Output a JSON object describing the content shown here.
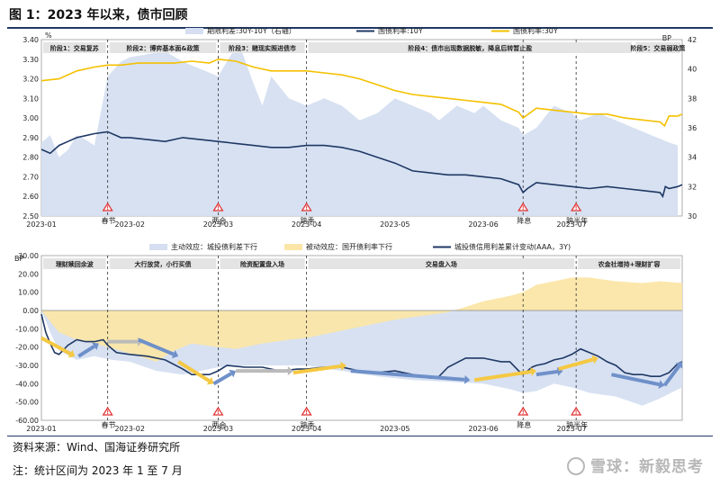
{
  "figure_title": "图 1：2023 年以来，债市回顾",
  "source": "资料来源：Wind、国海证券研究所",
  "note": "注：统计区间为 2023 年 1 至 7 月",
  "watermark": "雪球：新毅思考",
  "colors": {
    "spread_fill": "#d5dff1",
    "cgb10": "#1f3864",
    "cgb30": "#f5c000",
    "active_fill": "#d5dff1",
    "passive_fill": "#fbe6a8",
    "credit_line": "#1f3864",
    "phase_box": "#e4e4e4",
    "event_marker": "#e03030",
    "arrow_blue": "#6f90c9",
    "arrow_gold": "#f5c842",
    "arrow_gray": "#bbbbbb"
  },
  "chart_data": [
    {
      "type": "line",
      "left_axis_unit": "%",
      "right_axis_unit": "BP",
      "ylim_left": [
        2.5,
        3.4
      ],
      "yticks_left": [
        "2.50",
        "2.60",
        "2.70",
        "2.80",
        "2.90",
        "3.00",
        "3.10",
        "3.20",
        "3.30",
        "3.40"
      ],
      "ylim_right": [
        30,
        42
      ],
      "yticks_right": [
        "30",
        "32",
        "34",
        "36",
        "38",
        "40",
        "42"
      ],
      "x_ticks": [
        "2023-01",
        "2023-02",
        "2023-03",
        "2023-04",
        "2023-05",
        "2023-06",
        "2023-07"
      ],
      "x_range": [
        0,
        7.25
      ],
      "legend": [
        "期限利差:30Y-10Y（右轴）",
        "国债利率:10Y",
        "国债利率:30Y"
      ],
      "phases": [
        {
          "label": "阶段1：交易复苏",
          "start": 0.0,
          "end": 0.75
        },
        {
          "label": "阶段2：博弈基本面&政策",
          "start": 0.75,
          "end": 2.0
        },
        {
          "label": "阶段3：赌现实照进债市",
          "start": 2.0,
          "end": 3.0
        },
        {
          "label": "阶段4：债市出现数据脱敏，降息后转暂止盈",
          "start": 3.0,
          "end": 6.7
        },
        {
          "label": "阶段5：交易弱政策",
          "start": 6.7,
          "end": 7.25
        }
      ],
      "events": [
        {
          "label": "春节",
          "x": 0.75
        },
        {
          "label": "两会",
          "x": 2.0
        },
        {
          "label": "跨季",
          "x": 3.0
        },
        {
          "label": "降息",
          "x": 5.45
        },
        {
          "label": "跨半年",
          "x": 6.05
        }
      ],
      "series": [
        {
          "name": "期限利差:30Y-10Y（右轴）",
          "axis": "right",
          "style": "area",
          "x": [
            0.0,
            0.1,
            0.2,
            0.3,
            0.4,
            0.5,
            0.6,
            0.75,
            0.9,
            1.0,
            1.2,
            1.4,
            1.6,
            1.8,
            2.0,
            2.15,
            2.25,
            2.4,
            2.5,
            2.6,
            2.8,
            3.0,
            3.2,
            3.4,
            3.6,
            3.8,
            4.0,
            4.2,
            4.4,
            4.5,
            4.7,
            4.9,
            5.0,
            5.2,
            5.4,
            5.45,
            5.6,
            5.8,
            6.0,
            6.1,
            6.3,
            6.5,
            6.7,
            6.9,
            7.1,
            7.2
          ],
          "y": [
            35.0,
            35.5,
            34.0,
            34.5,
            35.5,
            35.2,
            34.8,
            39.5,
            40.5,
            40.8,
            41.0,
            41.2,
            40.5,
            40.0,
            39.5,
            41.0,
            41.5,
            39.0,
            37.5,
            39.5,
            38.0,
            37.5,
            38.0,
            37.5,
            36.5,
            37.0,
            38.0,
            37.5,
            37.0,
            36.5,
            37.5,
            37.0,
            37.5,
            36.5,
            36.0,
            35.5,
            36.0,
            37.5,
            37.0,
            36.5,
            37.0,
            36.5,
            36.0,
            35.5,
            35.0,
            34.8
          ]
        },
        {
          "name": "国债利率:10Y",
          "axis": "left",
          "style": "line",
          "x": [
            0.0,
            0.1,
            0.2,
            0.3,
            0.4,
            0.5,
            0.6,
            0.75,
            0.9,
            1.0,
            1.2,
            1.4,
            1.6,
            1.8,
            2.0,
            2.2,
            2.4,
            2.6,
            2.8,
            3.0,
            3.2,
            3.4,
            3.6,
            3.8,
            4.0,
            4.2,
            4.4,
            4.6,
            4.8,
            5.0,
            5.2,
            5.4,
            5.45,
            5.5,
            5.6,
            5.8,
            6.0,
            6.2,
            6.4,
            6.6,
            6.8,
            7.0,
            7.03,
            7.06,
            7.1,
            7.2,
            7.25
          ],
          "y": [
            2.84,
            2.82,
            2.86,
            2.88,
            2.9,
            2.91,
            2.92,
            2.93,
            2.9,
            2.9,
            2.89,
            2.88,
            2.9,
            2.89,
            2.88,
            2.87,
            2.86,
            2.85,
            2.85,
            2.86,
            2.86,
            2.85,
            2.83,
            2.8,
            2.77,
            2.73,
            2.72,
            2.71,
            2.71,
            2.7,
            2.69,
            2.66,
            2.62,
            2.64,
            2.67,
            2.66,
            2.65,
            2.64,
            2.65,
            2.64,
            2.63,
            2.62,
            2.6,
            2.65,
            2.64,
            2.65,
            2.66
          ]
        },
        {
          "name": "国债利率:30Y",
          "axis": "left",
          "style": "line",
          "x": [
            0.0,
            0.2,
            0.4,
            0.6,
            0.75,
            0.9,
            1.1,
            1.3,
            1.5,
            1.7,
            1.9,
            2.0,
            2.2,
            2.4,
            2.6,
            2.8,
            3.0,
            3.2,
            3.4,
            3.6,
            3.8,
            4.0,
            4.2,
            4.4,
            4.6,
            4.8,
            5.0,
            5.2,
            5.4,
            5.45,
            5.6,
            5.8,
            6.0,
            6.2,
            6.4,
            6.6,
            6.8,
            7.0,
            7.05,
            7.1,
            7.2,
            7.25
          ],
          "y": [
            3.19,
            3.2,
            3.24,
            3.26,
            3.27,
            3.27,
            3.28,
            3.28,
            3.28,
            3.29,
            3.28,
            3.3,
            3.29,
            3.26,
            3.24,
            3.24,
            3.24,
            3.23,
            3.22,
            3.2,
            3.17,
            3.14,
            3.12,
            3.11,
            3.1,
            3.09,
            3.08,
            3.07,
            3.03,
            3.0,
            3.05,
            3.04,
            3.03,
            3.02,
            3.02,
            3.0,
            2.99,
            2.98,
            2.96,
            3.01,
            3.01,
            3.02
          ]
        }
      ]
    },
    {
      "type": "area",
      "y_axis_unit": "BP",
      "ylim": [
        -60,
        30
      ],
      "yticks": [
        "-60.00",
        "-50.00",
        "-40.00",
        "-30.00",
        "-20.00",
        "-10.00",
        "0.00",
        "10.00",
        "20.00",
        "30.00"
      ],
      "x_ticks": [
        "2023-01",
        "2023-02",
        "2023-03",
        "2023-04",
        "2023-05",
        "2023-06",
        "2023-07"
      ],
      "x_range": [
        0,
        7.25
      ],
      "legend": [
        "主动效应：城投债利差下行",
        "被动效应：国开债利率下行",
        "城投债信用利差累计变动(AAA，3Y)"
      ],
      "phases": [
        {
          "label": "理财赎回余波",
          "start": 0.0,
          "end": 0.75
        },
        {
          "label": "大行放贷，小行买债",
          "start": 0.75,
          "end": 2.0
        },
        {
          "label": "险资配置盘入场",
          "start": 2.0,
          "end": 3.0
        },
        {
          "label": "交易盘入场",
          "start": 3.0,
          "end": 6.05
        },
        {
          "label": "农金社增持+理财扩容",
          "start": 6.05,
          "end": 7.25
        }
      ],
      "events": [
        {
          "label": "春节",
          "x": 0.75
        },
        {
          "label": "两会",
          "x": 2.0
        },
        {
          "label": "跨季",
          "x": 3.0
        },
        {
          "label": "降息",
          "x": 5.45
        },
        {
          "label": "跨半年",
          "x": 6.05
        }
      ],
      "series": [
        {
          "name": "主动效应：城投债利差下行",
          "style": "area",
          "x": [
            0.0,
            0.1,
            0.2,
            0.4,
            0.6,
            0.8,
            1.0,
            1.3,
            1.6,
            2.0,
            2.4,
            2.8,
            3.0,
            3.4,
            3.8,
            4.2,
            4.6,
            5.0,
            5.3,
            5.45,
            5.6,
            5.8,
            6.0,
            6.2,
            6.5,
            6.8,
            7.0,
            7.25
          ],
          "y": [
            0,
            -12,
            -22,
            -27,
            -25,
            -27,
            -28,
            -33,
            -35,
            -31,
            -30,
            -30,
            -30,
            -33,
            -36,
            -38,
            -39,
            -40,
            -43,
            -45,
            -44,
            -40,
            -42,
            -45,
            -47,
            -52,
            -48,
            -42
          ]
        },
        {
          "name": "被动效应：国开债利率下行",
          "style": "area",
          "x": [
            0.0,
            0.2,
            0.4,
            0.6,
            0.75,
            0.9,
            1.1,
            1.3,
            1.5,
            1.7,
            2.0,
            2.2,
            2.5,
            2.8,
            3.0,
            3.3,
            3.6,
            4.0,
            4.3,
            4.6,
            5.0,
            5.3,
            5.45,
            5.6,
            5.8,
            6.0,
            6.2,
            6.5,
            6.8,
            7.0,
            7.25
          ],
          "y": [
            0,
            -12,
            -16,
            -18,
            -20,
            -22,
            -25,
            -28,
            -22,
            -18,
            -20,
            -21,
            -18,
            -16,
            -15,
            -12,
            -9,
            -5,
            -3,
            -1,
            5,
            8,
            10,
            14,
            16,
            18,
            18,
            16,
            15,
            16,
            15
          ]
        },
        {
          "name": "城投债信用利差累计变动(AAA，3Y)",
          "style": "line",
          "x": [
            0.0,
            0.05,
            0.1,
            0.15,
            0.2,
            0.3,
            0.4,
            0.5,
            0.6,
            0.7,
            0.75,
            0.85,
            1.0,
            1.2,
            1.4,
            1.6,
            1.7,
            1.8,
            1.9,
            2.0,
            2.1,
            2.3,
            2.5,
            2.7,
            2.9,
            3.0,
            3.2,
            3.4,
            3.6,
            3.8,
            4.0,
            4.2,
            4.3,
            4.4,
            4.5,
            4.6,
            4.8,
            4.9,
            5.0,
            5.2,
            5.3,
            5.4,
            5.45,
            5.5,
            5.55,
            5.6,
            5.7,
            5.8,
            5.9,
            6.0,
            6.1,
            6.2,
            6.3,
            6.4,
            6.5,
            6.6,
            6.7,
            6.8,
            6.9,
            7.0,
            7.1,
            7.2,
            7.25
          ],
          "y": [
            -2,
            -12,
            -18,
            -23,
            -24,
            -19,
            -16,
            -17,
            -17,
            -16,
            -19,
            -23,
            -24,
            -25,
            -27,
            -32,
            -35,
            -35,
            -35,
            -33,
            -30,
            -31,
            -31,
            -33,
            -32,
            -32,
            -31,
            -31,
            -33,
            -34,
            -33,
            -35,
            -36,
            -37,
            -36,
            -31,
            -26,
            -26,
            -26,
            -28,
            -28,
            -33,
            -35,
            -33,
            -31,
            -30,
            -29,
            -27,
            -26,
            -24,
            -21,
            -23,
            -25,
            -28,
            -30,
            -34,
            -35,
            -35,
            -36,
            -36,
            -34,
            -29,
            -28
          ]
        }
      ],
      "trend_arrows": [
        {
          "from": [
            0.0,
            -15
          ],
          "to": [
            0.38,
            -25
          ],
          "color": "arrow_gold"
        },
        {
          "from": [
            0.42,
            -25
          ],
          "to": [
            0.65,
            -18
          ],
          "color": "arrow_blue"
        },
        {
          "from": [
            0.75,
            -17
          ],
          "to": [
            1.15,
            -17
          ],
          "color": "arrow_gray"
        },
        {
          "from": [
            1.1,
            -16
          ],
          "to": [
            1.55,
            -25
          ],
          "color": "arrow_blue"
        },
        {
          "from": [
            1.55,
            -28
          ],
          "to": [
            1.95,
            -40
          ],
          "color": "arrow_gold"
        },
        {
          "from": [
            1.95,
            -40
          ],
          "to": [
            2.2,
            -33
          ],
          "color": "arrow_blue"
        },
        {
          "from": [
            2.2,
            -33
          ],
          "to": [
            2.85,
            -33
          ],
          "color": "arrow_gray"
        },
        {
          "from": [
            2.85,
            -34
          ],
          "to": [
            3.45,
            -30
          ],
          "color": "arrow_gold"
        },
        {
          "from": [
            3.5,
            -33
          ],
          "to": [
            4.85,
            -38
          ],
          "color": "arrow_blue"
        },
        {
          "from": [
            4.9,
            -38
          ],
          "to": [
            5.6,
            -33
          ],
          "color": "arrow_gold"
        },
        {
          "from": [
            5.6,
            -35
          ],
          "to": [
            5.9,
            -33
          ],
          "color": "arrow_blue"
        },
        {
          "from": [
            5.85,
            -32
          ],
          "to": [
            6.3,
            -26
          ],
          "color": "arrow_gold"
        },
        {
          "from": [
            6.45,
            -35
          ],
          "to": [
            7.05,
            -41
          ],
          "color": "arrow_blue"
        },
        {
          "from": [
            7.05,
            -41
          ],
          "to": [
            7.25,
            -28
          ],
          "color": "arrow_blue"
        }
      ]
    }
  ]
}
